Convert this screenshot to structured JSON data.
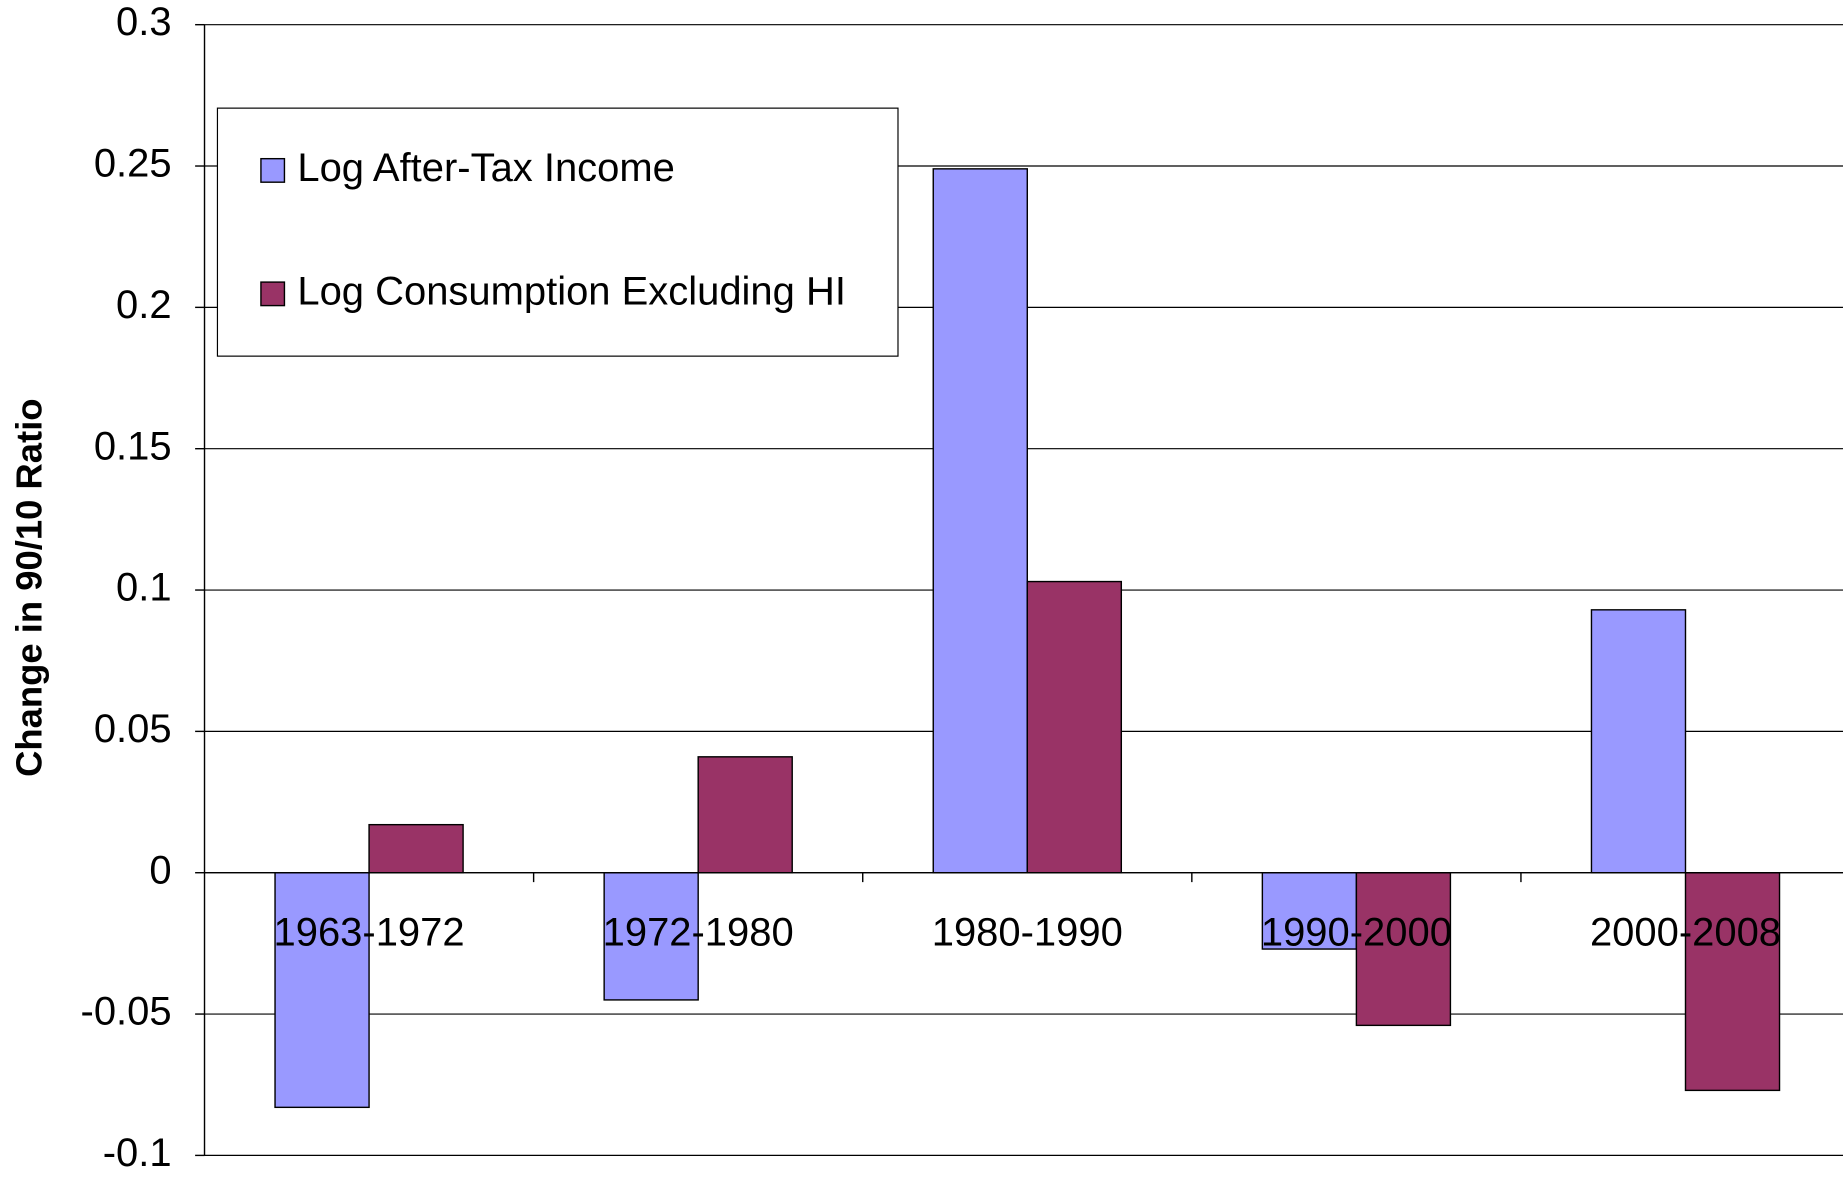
{
  "chart_data": {
    "type": "bar",
    "y_label": "Change in 90/10 Ratio",
    "categories": [
      "1963-1972",
      "1972-1980",
      "1980-1990",
      "1990-2000",
      "2000-2008"
    ],
    "series": [
      {
        "name": "Log After-Tax Income",
        "color": "#9999ff",
        "values": [
          -0.083,
          -0.045,
          0.249,
          -0.027,
          0.093
        ]
      },
      {
        "name": "Log Consumption Excluding HI",
        "color": "#993366",
        "values": [
          0.017,
          0.041,
          0.103,
          -0.054,
          -0.077
        ]
      }
    ],
    "ylim": [
      -0.1,
      0.3
    ],
    "yticks": [
      -0.1,
      -0.05,
      0,
      0.05,
      0.1,
      0.15,
      0.2,
      0.25,
      0.3
    ],
    "grid": true,
    "legend": "upper-left"
  }
}
